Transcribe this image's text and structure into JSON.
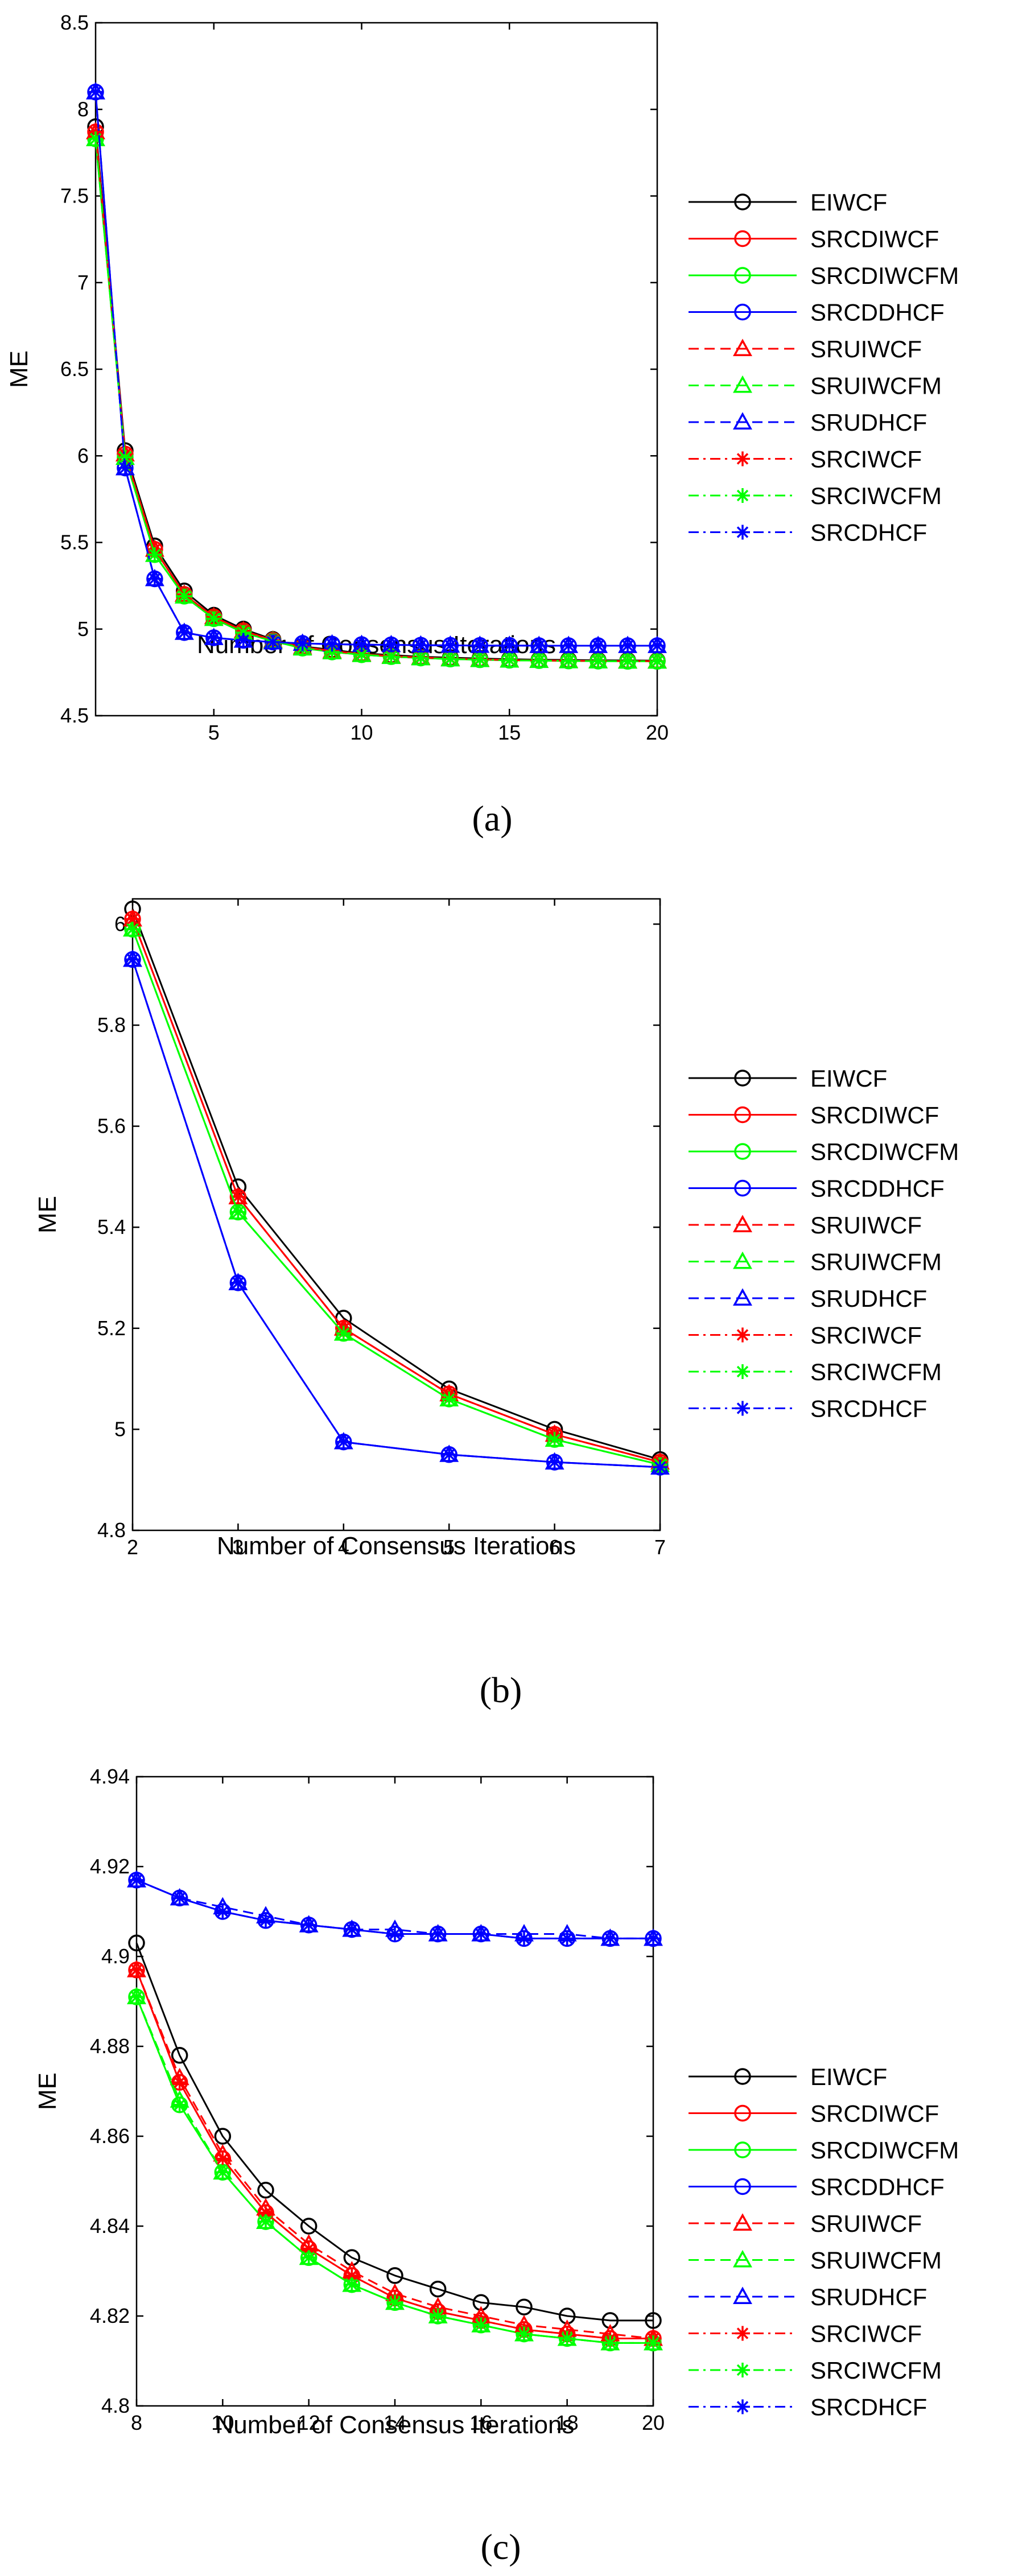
{
  "series_style": {
    "EIWCF": {
      "color": "#000000",
      "dash": "solid",
      "marker": "circle"
    },
    "SRCDIWCF": {
      "color": "#ff0000",
      "dash": "solid",
      "marker": "circle"
    },
    "SRCDIWCFM": {
      "color": "#00ff00",
      "dash": "solid",
      "marker": "circle"
    },
    "SRCDDHCF": {
      "color": "#0000ff",
      "dash": "solid",
      "marker": "circle"
    },
    "SRUIWCF": {
      "color": "#ff0000",
      "dash": "dashed",
      "marker": "triangle"
    },
    "SRUIWCFM": {
      "color": "#00ff00",
      "dash": "dashed",
      "marker": "triangle"
    },
    "SRUDHCF": {
      "color": "#0000ff",
      "dash": "dashed",
      "marker": "triangle"
    },
    "SRCIWCF": {
      "color": "#ff0000",
      "dash": "dashdot",
      "marker": "star"
    },
    "SRCIWCFM": {
      "color": "#00ff00",
      "dash": "dashdot",
      "marker": "star"
    },
    "SRCDHCF": {
      "color": "#0000ff",
      "dash": "dashdot",
      "marker": "star"
    }
  },
  "chart_data": [
    {
      "type": "line",
      "caption": "(a)",
      "xlabel": "Number of Consensus Iterations",
      "ylabel": "ME",
      "xlim": [
        1,
        20
      ],
      "ylim": [
        4.5,
        8.5
      ],
      "xticks": [
        5,
        10,
        15,
        20
      ],
      "yticks": [
        4.5,
        5,
        5.5,
        6,
        6.5,
        7,
        7.5,
        8,
        8.5
      ],
      "x": [
        1,
        2,
        3,
        4,
        5,
        6,
        7,
        8,
        9,
        10,
        11,
        12,
        13,
        14,
        15,
        16,
        17,
        18,
        19,
        20
      ],
      "series": [
        {
          "name": "EIWCF",
          "values": [
            7.9,
            6.03,
            5.48,
            5.22,
            5.08,
            5.0,
            4.94,
            4.9,
            4.88,
            4.86,
            4.85,
            4.84,
            4.835,
            4.83,
            4.826,
            4.823,
            4.822,
            4.82,
            4.819,
            4.818
          ]
        },
        {
          "name": "SRCDIWCF",
          "values": [
            7.87,
            6.01,
            5.46,
            5.2,
            5.07,
            4.99,
            4.935,
            4.896,
            4.873,
            4.856,
            4.844,
            4.836,
            4.829,
            4.825,
            4.821,
            4.819,
            4.817,
            4.816,
            4.815,
            4.815
          ]
        },
        {
          "name": "SRCDIWCFM",
          "values": [
            7.83,
            5.99,
            5.43,
            5.19,
            5.06,
            4.98,
            4.93,
            4.89,
            4.868,
            4.852,
            4.841,
            4.833,
            4.827,
            4.823,
            4.82,
            4.818,
            4.816,
            4.815,
            4.814,
            4.814
          ]
        },
        {
          "name": "SRCDDHCF",
          "values": [
            8.1,
            5.93,
            5.29,
            4.98,
            4.95,
            4.935,
            4.925,
            4.917,
            4.913,
            4.91,
            4.909,
            4.907,
            4.906,
            4.905,
            4.905,
            4.904,
            4.904,
            4.904,
            4.904,
            4.904
          ]
        },
        {
          "name": "SRUIWCF",
          "values": [
            7.87,
            6.01,
            5.46,
            5.2,
            5.07,
            4.99,
            4.935,
            4.896,
            4.873,
            4.856,
            4.844,
            4.836,
            4.829,
            4.825,
            4.821,
            4.819,
            4.817,
            4.816,
            4.815,
            4.815
          ]
        },
        {
          "name": "SRUIWCFM",
          "values": [
            7.83,
            5.99,
            5.43,
            5.19,
            5.06,
            4.98,
            4.93,
            4.89,
            4.868,
            4.852,
            4.841,
            4.833,
            4.827,
            4.823,
            4.82,
            4.818,
            4.816,
            4.815,
            4.814,
            4.814
          ]
        },
        {
          "name": "SRUDHCF",
          "values": [
            8.1,
            5.93,
            5.29,
            4.98,
            4.95,
            4.935,
            4.925,
            4.917,
            4.913,
            4.91,
            4.909,
            4.907,
            4.906,
            4.905,
            4.905,
            4.904,
            4.904,
            4.904,
            4.904,
            4.904
          ]
        },
        {
          "name": "SRCIWCF",
          "values": [
            7.87,
            6.01,
            5.46,
            5.2,
            5.07,
            4.99,
            4.935,
            4.896,
            4.873,
            4.856,
            4.844,
            4.836,
            4.829,
            4.825,
            4.821,
            4.819,
            4.817,
            4.816,
            4.815,
            4.815
          ]
        },
        {
          "name": "SRCIWCFM",
          "values": [
            7.83,
            5.99,
            5.43,
            5.19,
            5.06,
            4.98,
            4.93,
            4.89,
            4.868,
            4.852,
            4.841,
            4.833,
            4.827,
            4.823,
            4.82,
            4.818,
            4.816,
            4.815,
            4.814,
            4.814
          ]
        },
        {
          "name": "SRCDHCF",
          "values": [
            8.1,
            5.93,
            5.29,
            4.98,
            4.95,
            4.935,
            4.925,
            4.917,
            4.913,
            4.91,
            4.909,
            4.907,
            4.906,
            4.905,
            4.905,
            4.904,
            4.904,
            4.904,
            4.904,
            4.904
          ]
        }
      ]
    },
    {
      "type": "line",
      "caption": "(b)",
      "xlabel": "Number of Consensus Iterations",
      "ylabel": "ME",
      "xlim": [
        2,
        7
      ],
      "ylim": [
        4.8,
        6.05
      ],
      "xticks": [
        2,
        3,
        4,
        5,
        6,
        7
      ],
      "yticks": [
        4.8,
        5,
        5.2,
        5.4,
        5.6,
        5.8,
        6
      ],
      "x": [
        2,
        3,
        4,
        5,
        6,
        7
      ],
      "series": [
        {
          "name": "EIWCF",
          "values": [
            6.03,
            5.48,
            5.22,
            5.08,
            5.0,
            4.94
          ]
        },
        {
          "name": "SRCDIWCF",
          "values": [
            6.01,
            5.46,
            5.2,
            5.07,
            4.99,
            4.935
          ]
        },
        {
          "name": "SRCDIWCFM",
          "values": [
            5.99,
            5.43,
            5.19,
            5.06,
            4.98,
            4.93
          ]
        },
        {
          "name": "SRCDDHCF",
          "values": [
            5.93,
            5.29,
            4.975,
            4.95,
            4.935,
            4.925
          ]
        },
        {
          "name": "SRUIWCF",
          "values": [
            6.01,
            5.46,
            5.2,
            5.07,
            4.99,
            4.935
          ]
        },
        {
          "name": "SRUIWCFM",
          "values": [
            5.99,
            5.43,
            5.19,
            5.06,
            4.98,
            4.93
          ]
        },
        {
          "name": "SRUDHCF",
          "values": [
            5.93,
            5.29,
            4.975,
            4.95,
            4.935,
            4.925
          ]
        },
        {
          "name": "SRCIWCF",
          "values": [
            6.01,
            5.46,
            5.2,
            5.07,
            4.99,
            4.935
          ]
        },
        {
          "name": "SRCIWCFM",
          "values": [
            5.99,
            5.43,
            5.19,
            5.06,
            4.98,
            4.93
          ]
        },
        {
          "name": "SRCDHCF",
          "values": [
            5.93,
            5.29,
            4.975,
            4.95,
            4.935,
            4.925
          ]
        }
      ]
    },
    {
      "type": "line",
      "caption": "(c)",
      "xlabel": "Number of Consensus Iterations",
      "ylabel": "ME",
      "xlim": [
        8,
        20
      ],
      "ylim": [
        4.8,
        4.94
      ],
      "xticks": [
        8,
        10,
        12,
        14,
        16,
        18,
        20
      ],
      "yticks": [
        4.8,
        4.82,
        4.84,
        4.86,
        4.88,
        4.9,
        4.92,
        4.94
      ],
      "x": [
        8,
        9,
        10,
        11,
        12,
        13,
        14,
        15,
        16,
        17,
        18,
        19,
        20
      ],
      "series": [
        {
          "name": "EIWCF",
          "values": [
            4.903,
            4.878,
            4.86,
            4.848,
            4.84,
            4.833,
            4.829,
            4.826,
            4.823,
            4.822,
            4.82,
            4.819,
            4.819
          ]
        },
        {
          "name": "SRCDIWCF",
          "values": [
            4.897,
            4.872,
            4.855,
            4.843,
            4.835,
            4.829,
            4.824,
            4.821,
            4.819,
            4.817,
            4.816,
            4.815,
            4.815
          ]
        },
        {
          "name": "SRCDIWCFM",
          "values": [
            4.891,
            4.867,
            4.852,
            4.841,
            4.833,
            4.827,
            4.823,
            4.82,
            4.818,
            4.816,
            4.815,
            4.814,
            4.814
          ]
        },
        {
          "name": "SRCDDHCF",
          "values": [
            4.917,
            4.913,
            4.91,
            4.908,
            4.907,
            4.906,
            4.905,
            4.905,
            4.905,
            4.904,
            4.904,
            4.904,
            4.904
          ]
        },
        {
          "name": "SRUIWCF",
          "values": [
            4.897,
            4.873,
            4.856,
            4.844,
            4.836,
            4.83,
            4.825,
            4.822,
            4.82,
            4.818,
            4.817,
            4.816,
            4.815
          ]
        },
        {
          "name": "SRUIWCFM",
          "values": [
            4.891,
            4.868,
            4.852,
            4.841,
            4.833,
            4.827,
            4.823,
            4.82,
            4.818,
            4.816,
            4.815,
            4.814,
            4.814
          ]
        },
        {
          "name": "SRUDHCF",
          "values": [
            4.917,
            4.913,
            4.911,
            4.909,
            4.907,
            4.906,
            4.906,
            4.905,
            4.905,
            4.905,
            4.905,
            4.904,
            4.904
          ]
        },
        {
          "name": "SRCIWCF",
          "values": [
            4.897,
            4.872,
            4.855,
            4.843,
            4.835,
            4.829,
            4.824,
            4.821,
            4.819,
            4.817,
            4.816,
            4.815,
            4.815
          ]
        },
        {
          "name": "SRCIWCFM",
          "values": [
            4.891,
            4.867,
            4.852,
            4.841,
            4.833,
            4.827,
            4.823,
            4.82,
            4.818,
            4.816,
            4.815,
            4.814,
            4.814
          ]
        },
        {
          "name": "SRCDHCF",
          "values": [
            4.917,
            4.913,
            4.91,
            4.908,
            4.907,
            4.906,
            4.905,
            4.905,
            4.905,
            4.904,
            4.904,
            4.904,
            4.904
          ]
        }
      ]
    }
  ]
}
